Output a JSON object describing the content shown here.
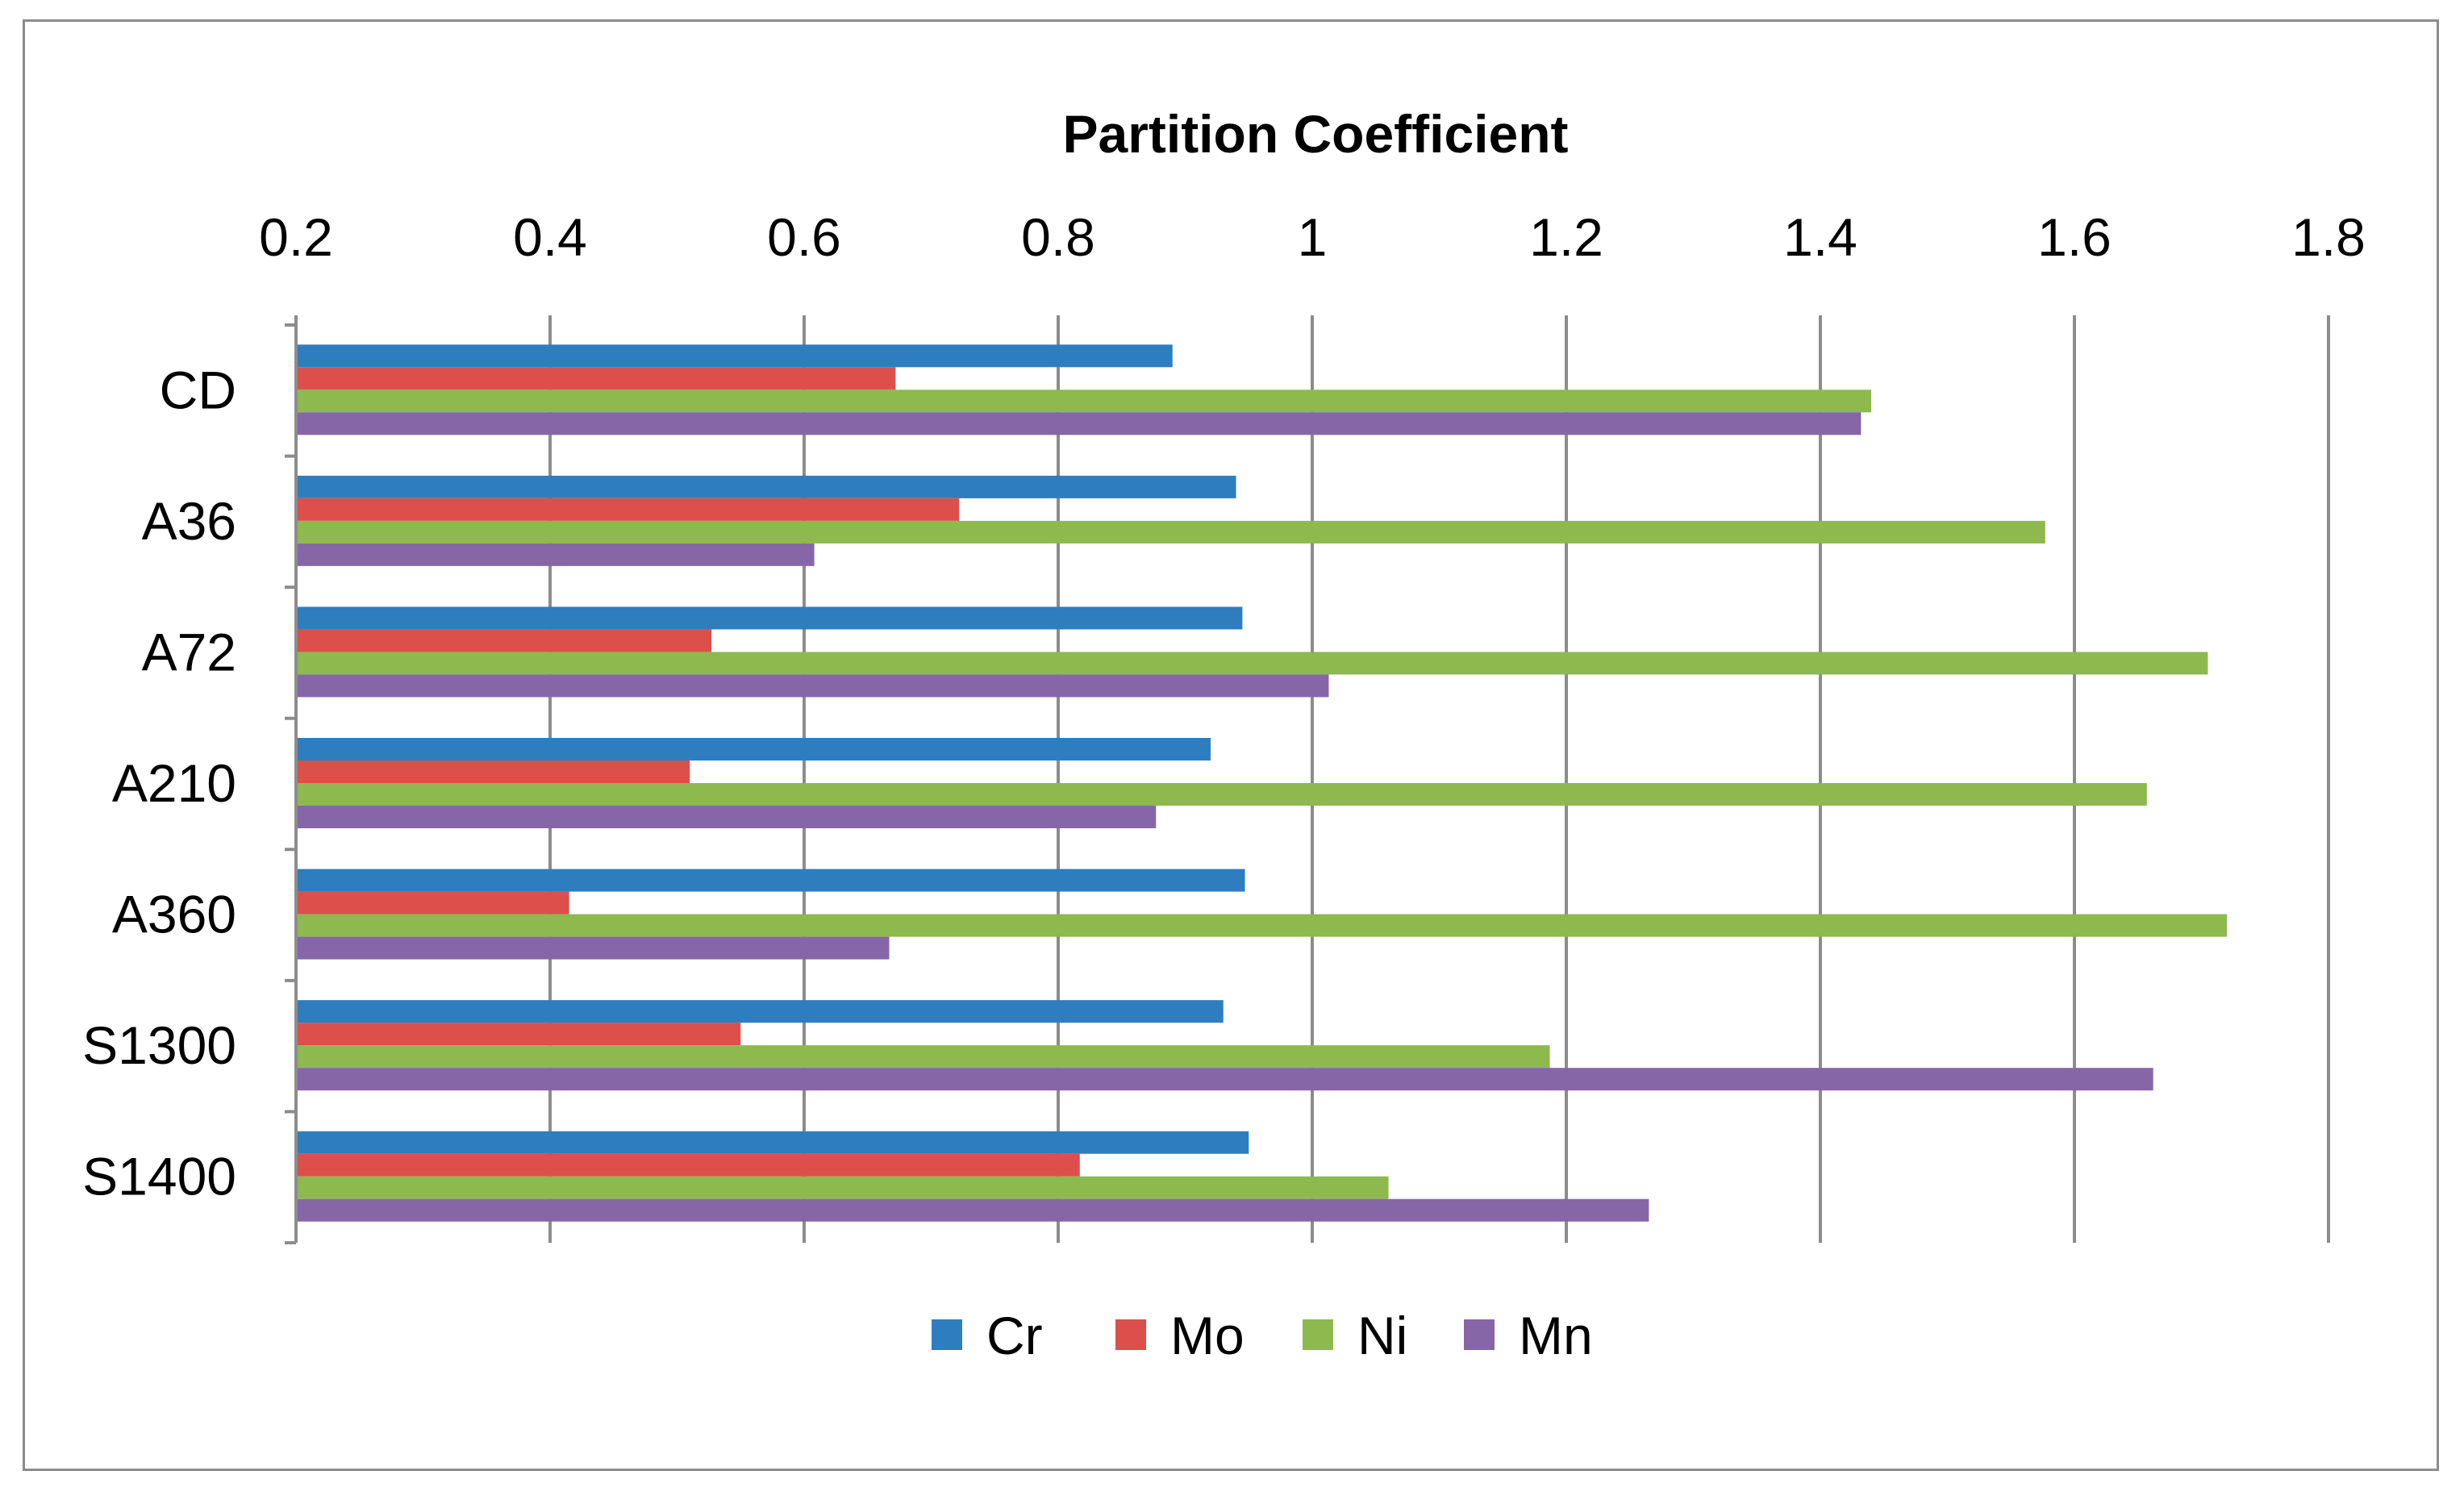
{
  "chart_data": {
    "type": "bar",
    "orientation": "horizontal",
    "title": "Partition Coefficient",
    "xlabel": "",
    "ylabel": "",
    "xlim": [
      0.2,
      1.8
    ],
    "x_ticks": [
      0.2,
      0.4,
      0.6,
      0.8,
      1,
      1.2,
      1.4,
      1.6,
      1.8
    ],
    "x_tick_labels": [
      "0.2",
      "0.4",
      "0.6",
      "0.8",
      "1",
      "1.2",
      "1.4",
      "1.6",
      "1.8"
    ],
    "axis_position": "top",
    "grid": true,
    "legend_position": "bottom",
    "categories": [
      "CD",
      "A36",
      "A72",
      "A210",
      "A360",
      "S1300",
      "S1400"
    ],
    "series": [
      {
        "name": "Cr",
        "color": "#2e7ebf",
        "values": [
          0.89,
          0.94,
          0.945,
          0.92,
          0.947,
          0.93,
          0.95
        ]
      },
      {
        "name": "Mo",
        "color": "#dd4f4b",
        "values": [
          0.672,
          0.722,
          0.527,
          0.51,
          0.415,
          0.55,
          0.817
        ]
      },
      {
        "name": "Ni",
        "color": "#8db94f",
        "values": [
          1.44,
          1.577,
          1.705,
          1.657,
          1.72,
          1.187,
          1.06
        ]
      },
      {
        "name": "Mn",
        "color": "#8766a8",
        "values": [
          1.432,
          0.608,
          1.013,
          0.877,
          0.667,
          1.662,
          1.265
        ]
      }
    ]
  }
}
